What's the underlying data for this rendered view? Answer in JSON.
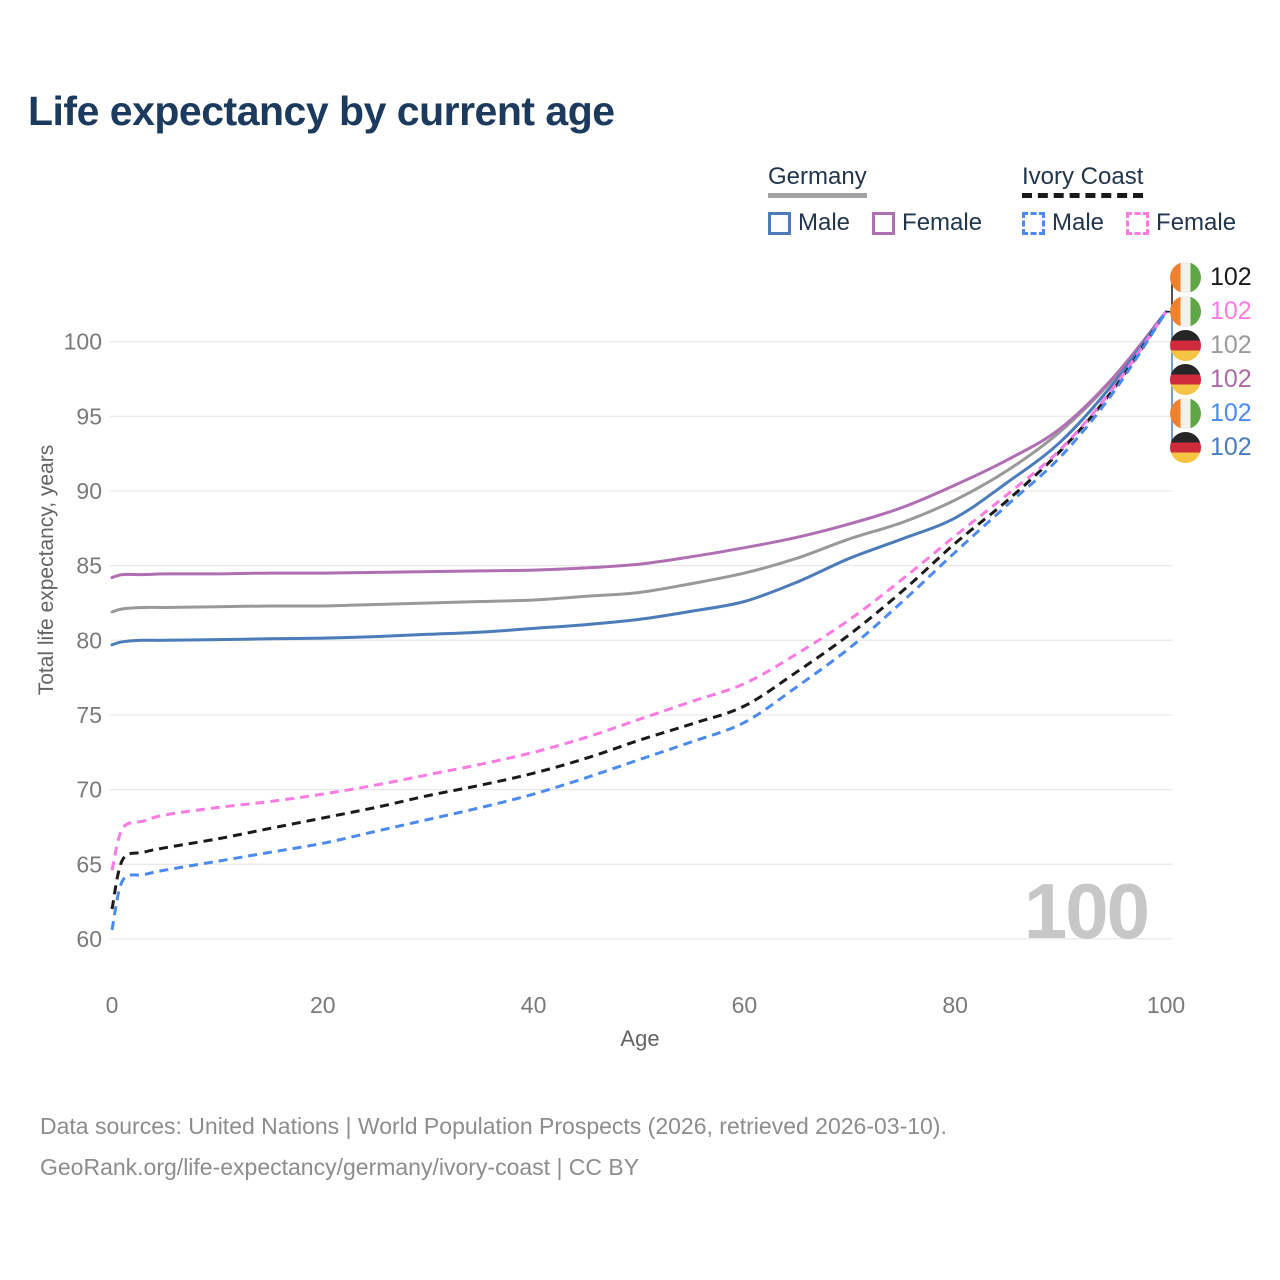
{
  "title": "Life expectancy by current age",
  "legend": {
    "groups": [
      {
        "label": "Germany",
        "line_style": "solid",
        "underline_color": "#a3a3a3",
        "items": [
          {
            "label": "Male",
            "color": "#4c7cba"
          },
          {
            "label": "Female",
            "color": "#b06fb3"
          }
        ]
      },
      {
        "label": "Ivory Coast",
        "line_style": "dashed",
        "underline_color": "#1a1a1a",
        "items": [
          {
            "label": "Male",
            "color": "#4b8bf0"
          },
          {
            "label": "Female",
            "color": "#fb7be2"
          }
        ]
      }
    ]
  },
  "chart_data": {
    "type": "line",
    "title": "Life expectancy by current age",
    "xlabel": "Age",
    "ylabel": "Total life expectancy, years",
    "xlim": [
      0,
      100
    ],
    "ylim": [
      60,
      102.5
    ],
    "x_ticks": [
      0,
      20,
      40,
      60,
      80,
      100
    ],
    "y_ticks": [
      60,
      65,
      70,
      75,
      80,
      85,
      90,
      95,
      100
    ],
    "grid": true,
    "legend_position": "top-right",
    "x": [
      0,
      1,
      3,
      5,
      10,
      15,
      20,
      25,
      30,
      35,
      40,
      45,
      50,
      55,
      60,
      65,
      70,
      75,
      80,
      85,
      90,
      95,
      100
    ],
    "series": [
      {
        "name": "Germany — Both sexes",
        "country": "Germany",
        "group": "both",
        "style": "solid",
        "color": "#999999",
        "values": [
          81.9,
          82.1,
          82.2,
          82.2,
          82.25,
          82.3,
          82.3,
          82.4,
          82.5,
          82.6,
          82.7,
          82.95,
          83.2,
          83.8,
          84.5,
          85.5,
          86.8,
          87.9,
          89.4,
          91.4,
          94.0,
          97.5,
          102
        ]
      },
      {
        "name": "Germany — Female",
        "country": "Germany",
        "group": "female",
        "style": "solid",
        "color": "#b06fb3",
        "values": [
          84.2,
          84.4,
          84.4,
          84.45,
          84.45,
          84.5,
          84.5,
          84.55,
          84.6,
          84.65,
          84.7,
          84.85,
          85.1,
          85.6,
          86.2,
          86.9,
          87.8,
          88.9,
          90.4,
          92.1,
          94.2,
          97.6,
          102
        ]
      },
      {
        "name": "Germany — Male",
        "country": "Germany",
        "group": "male",
        "style": "solid",
        "color": "#4c7cba",
        "values": [
          79.7,
          79.9,
          80.0,
          80.0,
          80.05,
          80.1,
          80.15,
          80.25,
          80.4,
          80.55,
          80.8,
          81.05,
          81.4,
          81.95,
          82.6,
          83.9,
          85.5,
          86.8,
          88.2,
          90.6,
          93.3,
          97.2,
          102
        ]
      },
      {
        "name": "Ivory Coast — Both sexes",
        "country": "Ivory Coast",
        "group": "both",
        "style": "dashed",
        "color": "#1a1a1a",
        "values": [
          62.0,
          65.3,
          65.8,
          66.1,
          66.7,
          67.4,
          68.1,
          68.8,
          69.6,
          70.3,
          71.1,
          72.1,
          73.3,
          74.4,
          75.6,
          77.9,
          80.4,
          83.3,
          86.5,
          89.4,
          92.7,
          96.8,
          102
        ]
      },
      {
        "name": "Ivory Coast — Female",
        "country": "Ivory Coast",
        "group": "female",
        "style": "dashed",
        "color": "#fb7be2",
        "values": [
          64.6,
          67.4,
          67.9,
          68.3,
          68.8,
          69.2,
          69.7,
          70.3,
          71.0,
          71.7,
          72.5,
          73.5,
          74.7,
          75.9,
          77.1,
          79.1,
          81.4,
          84.1,
          87.0,
          89.8,
          92.8,
          96.9,
          102
        ]
      },
      {
        "name": "Ivory Coast — Male",
        "country": "Ivory Coast",
        "group": "male",
        "style": "dashed",
        "color": "#4b8bf0",
        "values": [
          60.6,
          63.9,
          64.3,
          64.6,
          65.2,
          65.8,
          66.4,
          67.2,
          68.0,
          68.8,
          69.7,
          70.8,
          72.0,
          73.2,
          74.5,
          76.9,
          79.5,
          82.6,
          85.9,
          89.1,
          92.3,
          96.6,
          102
        ]
      }
    ],
    "end_labels": [
      {
        "flag": "ivory-coast",
        "value": "102",
        "color": "#1a1a1a",
        "series": "Ivory Coast — Both sexes"
      },
      {
        "flag": "ivory-coast",
        "value": "102",
        "color": "#ff7be0",
        "series": "Ivory Coast — Female"
      },
      {
        "flag": "germany",
        "value": "102",
        "color": "#9b9b9b",
        "series": "Germany — Both sexes"
      },
      {
        "flag": "germany",
        "value": "102",
        "color": "#a86ca4",
        "series": "Germany — Female"
      },
      {
        "flag": "ivory-coast",
        "value": "102",
        "color": "#4b8bf0",
        "series": "Ivory Coast — Male"
      },
      {
        "flag": "germany",
        "value": "102",
        "color": "#4a7bbf",
        "series": "Germany — Male"
      }
    ],
    "watermark": "100"
  },
  "flags": {
    "germany": {
      "orientation": "horizontal",
      "colors": [
        "#262626",
        "#cf2b3a",
        "#f6c445"
      ]
    },
    "ivory-coast": {
      "orientation": "vertical",
      "colors": [
        "#f3802d",
        "#f2f1ec",
        "#5ea744"
      ]
    }
  },
  "footer": {
    "line1": "Data sources: United Nations | World Population Prospects (2026, retrieved 2026-03-10).",
    "line2": "GeoRank.org/life-expectancy/germany/ivory-coast | CC BY"
  }
}
